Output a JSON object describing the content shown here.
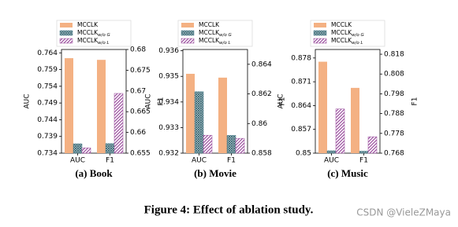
{
  "chart_data": [
    {
      "type": "bar",
      "caption": "(a) Book",
      "ylabel": "AUC",
      "y2label": "F1",
      "categories": [
        "AUC",
        "F1"
      ],
      "category_axes": [
        "y",
        "y2"
      ],
      "ylim": [
        0.734,
        0.765
      ],
      "yticks": [
        0.734,
        0.739,
        0.744,
        0.749,
        0.754,
        0.759,
        0.764
      ],
      "y2lim": [
        0.655,
        0.68
      ],
      "y2ticks": [
        0.655,
        0.66,
        0.665,
        0.67,
        0.675,
        0.68
      ],
      "series": [
        {
          "name": "MCCLK",
          "color": "#f4b183",
          "values": [
            0.7624,
            0.6775
          ]
        },
        {
          "name": "MCCLK",
          "name_subscript": "w/o G",
          "color": "#4a7f8c",
          "values": [
            0.7368,
            0.6573
          ]
        },
        {
          "name": "MCCLK",
          "name_subscript": "w/o L",
          "color": "#9b4f9e",
          "values": [
            0.7356,
            0.6694
          ]
        }
      ]
    },
    {
      "type": "bar",
      "caption": "(b) Movie",
      "ylabel": "AUC",
      "y2label": "F1",
      "categories": [
        "AUC",
        "F1"
      ],
      "category_axes": [
        "y",
        "y2"
      ],
      "ylim": [
        0.932,
        0.93605
      ],
      "yticks": [
        0.932,
        0.933,
        0.934,
        0.935,
        0.936
      ],
      "y2lim": [
        0.858,
        0.865
      ],
      "y2ticks": [
        0.858,
        0.86,
        0.862,
        0.864
      ],
      "series": [
        {
          "name": "MCCLK",
          "color": "#f4b183",
          "values": [
            0.9351,
            0.8631
          ]
        },
        {
          "name": "MCCLK",
          "name_subscript": "w/o G",
          "color": "#4a7f8c",
          "values": [
            0.9344,
            0.8592
          ]
        },
        {
          "name": "MCCLK",
          "name_subscript": "w/o L",
          "color": "#9b4f9e",
          "values": [
            0.9327,
            0.859
          ]
        }
      ]
    },
    {
      "type": "bar",
      "caption": "(c) Music",
      "ylabel": "AUC",
      "y2label": "F1",
      "categories": [
        "AUC",
        "F1"
      ],
      "category_axes": [
        "y",
        "y2"
      ],
      "ylim": [
        0.85,
        0.8805
      ],
      "yticks": [
        0.85,
        0.857,
        0.864,
        0.871,
        0.878
      ],
      "y2lim": [
        0.768,
        0.8204
      ],
      "y2ticks": [
        0.768,
        0.778,
        0.788,
        0.798,
        0.808,
        0.818
      ],
      "series": [
        {
          "name": "MCCLK",
          "color": "#f4b183",
          "values": [
            0.8769,
            0.801
          ]
        },
        {
          "name": "MCCLK",
          "name_subscript": "w/o G",
          "color": "#4a7f8c",
          "values": [
            0.8507,
            0.769
          ]
        },
        {
          "name": "MCCLK",
          "name_subscript": "w/o L",
          "color": "#9b4f9e",
          "values": [
            0.863,
            0.7763
          ]
        }
      ]
    }
  ],
  "figure_title": "Figure 4: Effect of ablation study.",
  "watermark": "CSDN @VieleZMaya"
}
